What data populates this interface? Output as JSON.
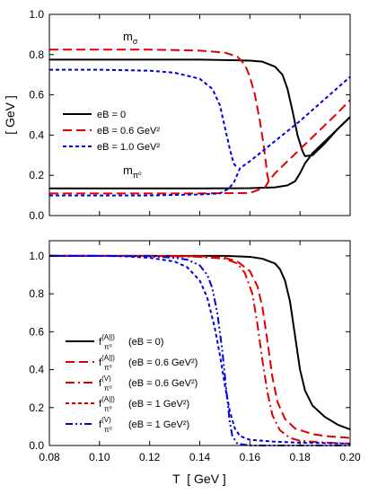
{
  "chart_data": [
    {
      "type": "line",
      "panel": "top",
      "title": "",
      "xlabel": "",
      "ylabel": "[ GeV ]",
      "xlim": [
        0.08,
        0.2
      ],
      "ylim": [
        0.0,
        1.0
      ],
      "x_ticks": [
        "0.08",
        "0.10",
        "0.12",
        "0.14",
        "0.16",
        "0.18",
        "0.20"
      ],
      "y_ticks": [
        "0.0",
        "0.2",
        "0.4",
        "0.6",
        "0.8",
        "1.0"
      ],
      "grid": false,
      "legend": "middle-left",
      "annotations": [
        {
          "text": "m",
          "sub": "σ"
        },
        {
          "text": "m",
          "sub": "π⁰"
        }
      ],
      "series": [
        {
          "name": "eB = 0",
          "group": "sigma",
          "style": "solid",
          "color": "#000000",
          "x": [
            0.08,
            0.1,
            0.12,
            0.14,
            0.15,
            0.16,
            0.165,
            0.17,
            0.173,
            0.175,
            0.177,
            0.179,
            0.181,
            0.182,
            0.185,
            0.19,
            0.195,
            0.2
          ],
          "y": [
            0.775,
            0.775,
            0.775,
            0.775,
            0.773,
            0.77,
            0.765,
            0.74,
            0.7,
            0.63,
            0.52,
            0.4,
            0.32,
            0.295,
            0.3,
            0.36,
            0.43,
            0.49
          ]
        },
        {
          "name": "",
          "group": "pion",
          "style": "solid",
          "color": "#000000",
          "x": [
            0.08,
            0.1,
            0.12,
            0.14,
            0.16,
            0.17,
            0.175,
            0.178,
            0.18,
            0.182,
            0.185,
            0.19,
            0.195,
            0.2
          ],
          "y": [
            0.135,
            0.135,
            0.135,
            0.135,
            0.136,
            0.14,
            0.15,
            0.17,
            0.21,
            0.26,
            0.31,
            0.37,
            0.43,
            0.49
          ]
        },
        {
          "name": "eB = 0.6 GeV²",
          "group": "sigma",
          "style": "dash",
          "color": "#e00000",
          "x": [
            0.08,
            0.1,
            0.12,
            0.14,
            0.15,
            0.155,
            0.158,
            0.16,
            0.162,
            0.164,
            0.1655,
            0.167,
            0.1675
          ],
          "y": [
            0.825,
            0.825,
            0.825,
            0.82,
            0.81,
            0.79,
            0.75,
            0.69,
            0.6,
            0.47,
            0.35,
            0.2,
            0.17
          ]
        },
        {
          "name": "",
          "group": "pion",
          "style": "dash",
          "color": "#e00000",
          "x": [
            0.08,
            0.1,
            0.12,
            0.14,
            0.16,
            0.166,
            0.1675,
            0.17,
            0.175,
            0.18,
            0.185,
            0.19,
            0.195,
            0.2
          ],
          "y": [
            0.11,
            0.11,
            0.11,
            0.11,
            0.112,
            0.14,
            0.17,
            0.21,
            0.27,
            0.33,
            0.39,
            0.45,
            0.51,
            0.575
          ]
        },
        {
          "name": "eB = 1.0 GeV²",
          "group": "sigma",
          "style": "dot",
          "color": "#0000e0",
          "x": [
            0.08,
            0.1,
            0.12,
            0.13,
            0.14,
            0.145,
            0.148,
            0.15,
            0.152,
            0.1535,
            0.155
          ],
          "y": [
            0.725,
            0.725,
            0.72,
            0.71,
            0.68,
            0.63,
            0.55,
            0.44,
            0.33,
            0.26,
            0.235
          ]
        },
        {
          "name": "",
          "group": "pion",
          "style": "dot",
          "color": "#0000e0",
          "x": [
            0.08,
            0.1,
            0.12,
            0.14,
            0.148,
            0.151,
            0.1535,
            0.156,
            0.16,
            0.17,
            0.18,
            0.19,
            0.2
          ],
          "y": [
            0.1,
            0.1,
            0.1,
            0.105,
            0.11,
            0.13,
            0.16,
            0.235,
            0.27,
            0.37,
            0.47,
            0.58,
            0.69
          ]
        }
      ]
    },
    {
      "type": "line",
      "panel": "bottom",
      "title": "",
      "xlabel": "T  [ GeV ]",
      "ylabel": "",
      "xlim": [
        0.08,
        0.2
      ],
      "ylim": [
        0.0,
        1.08
      ],
      "x_ticks": [
        "0.08",
        "0.10",
        "0.12",
        "0.14",
        "0.16",
        "0.18",
        "0.20"
      ],
      "y_ticks": [
        "0.0",
        "0.2",
        "0.4",
        "0.6",
        "0.8",
        "1.0"
      ],
      "grid": false,
      "legend": "lower-left",
      "series": [
        {
          "name": "(eB = 0)",
          "label_main": "f",
          "label_sup": "(A||)",
          "label_sub": "π⁰",
          "style": "solid",
          "color": "#000000",
          "x": [
            0.08,
            0.1,
            0.12,
            0.14,
            0.15,
            0.16,
            0.165,
            0.17,
            0.172,
            0.174,
            0.176,
            0.178,
            0.18,
            0.182,
            0.185,
            0.19,
            0.195,
            0.2
          ],
          "y": [
            1.0,
            1.0,
            1.0,
            1.0,
            1.0,
            0.995,
            0.985,
            0.96,
            0.93,
            0.87,
            0.76,
            0.58,
            0.4,
            0.29,
            0.21,
            0.15,
            0.11,
            0.085
          ]
        },
        {
          "name": "(eB = 0.6 GeV²)",
          "label_main": "f",
          "label_sup": "(A||)",
          "label_sub": "π⁰",
          "style": "dash",
          "color": "#e00000",
          "x": [
            0.08,
            0.1,
            0.12,
            0.14,
            0.15,
            0.155,
            0.16,
            0.163,
            0.165,
            0.167,
            0.169,
            0.171,
            0.174,
            0.178,
            0.185,
            0.19,
            0.2
          ],
          "y": [
            1.0,
            1.0,
            1.0,
            0.998,
            0.99,
            0.97,
            0.92,
            0.84,
            0.73,
            0.55,
            0.36,
            0.23,
            0.14,
            0.09,
            0.06,
            0.05,
            0.04
          ]
        },
        {
          "name": "(eB = 0.6 GeV²)",
          "label_main": "f",
          "label_sup": "(V)",
          "label_sub": "π⁰",
          "style": "dashdot",
          "color": "#e00000",
          "x": [
            0.08,
            0.1,
            0.12,
            0.14,
            0.15,
            0.155,
            0.158,
            0.161,
            0.163,
            0.165,
            0.167,
            0.169,
            0.172,
            0.176,
            0.18,
            0.19,
            0.2
          ],
          "y": [
            1.0,
            1.0,
            1.0,
            0.995,
            0.985,
            0.96,
            0.91,
            0.8,
            0.64,
            0.45,
            0.28,
            0.16,
            0.08,
            0.04,
            0.025,
            0.015,
            0.01
          ]
        },
        {
          "name": "(eB = 1 GeV²)",
          "label_main": "f",
          "label_sup": "(A||)",
          "label_sub": "π⁰",
          "style": "dot",
          "color": "#0000e0",
          "x": [
            0.08,
            0.1,
            0.11,
            0.12,
            0.13,
            0.135,
            0.14,
            0.143,
            0.146,
            0.148,
            0.15,
            0.152,
            0.154,
            0.156,
            0.16,
            0.17,
            0.18,
            0.2
          ],
          "y": [
            1.0,
            1.0,
            0.998,
            0.99,
            0.97,
            0.94,
            0.87,
            0.78,
            0.62,
            0.48,
            0.32,
            0.18,
            0.09,
            0.05,
            0.03,
            0.02,
            0.015,
            0.01
          ]
        },
        {
          "name": "(eB = 1 GeV²)",
          "label_main": "f",
          "label_sup": "(V)",
          "label_sub": "π⁰",
          "style": "dashdotdot",
          "color": "#0000e0",
          "x": [
            0.08,
            0.1,
            0.12,
            0.13,
            0.135,
            0.14,
            0.143,
            0.145,
            0.147,
            0.149,
            0.15,
            0.151,
            0.152,
            0.153,
            0.155,
            0.16,
            0.2
          ],
          "y": [
            1.0,
            1.0,
            0.998,
            0.99,
            0.98,
            0.95,
            0.9,
            0.83,
            0.7,
            0.5,
            0.37,
            0.24,
            0.12,
            0.05,
            0.01,
            0.0,
            0.0
          ]
        }
      ]
    }
  ]
}
